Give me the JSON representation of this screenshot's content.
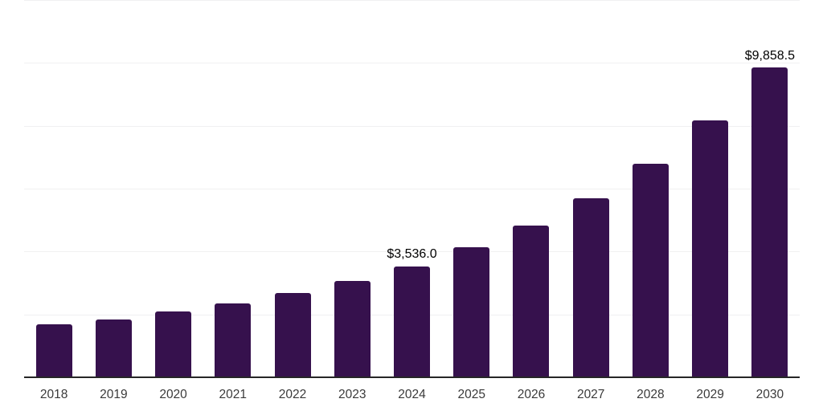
{
  "chart_data": {
    "type": "bar",
    "title": "",
    "xlabel": "",
    "ylabel": "",
    "categories": [
      "2018",
      "2019",
      "2020",
      "2021",
      "2022",
      "2023",
      "2024",
      "2025",
      "2026",
      "2027",
      "2028",
      "2029",
      "2030"
    ],
    "values": [
      1675,
      1850,
      2085,
      2340,
      2675,
      3060,
      3536.0,
      4125,
      4820,
      5685,
      6790,
      8170,
      9858.5
    ],
    "bar_labels": [
      "",
      "",
      "",
      "",
      "",
      "",
      "$3,536.0",
      "",
      "",
      "",
      "",
      "",
      "$9,858.5"
    ],
    "ylim": [
      0,
      12000
    ],
    "gridline_step": 2000,
    "grid": "horizontal",
    "legend_position": "none",
    "y_axis_labels_visible": false,
    "colors": {
      "bar": "#36114D",
      "axis_line": "#262626",
      "gridline": "#f0f0f1",
      "bar_label_text": "#000000",
      "tick_label_text": "#3a3a3a",
      "background": "#ffffff"
    }
  }
}
